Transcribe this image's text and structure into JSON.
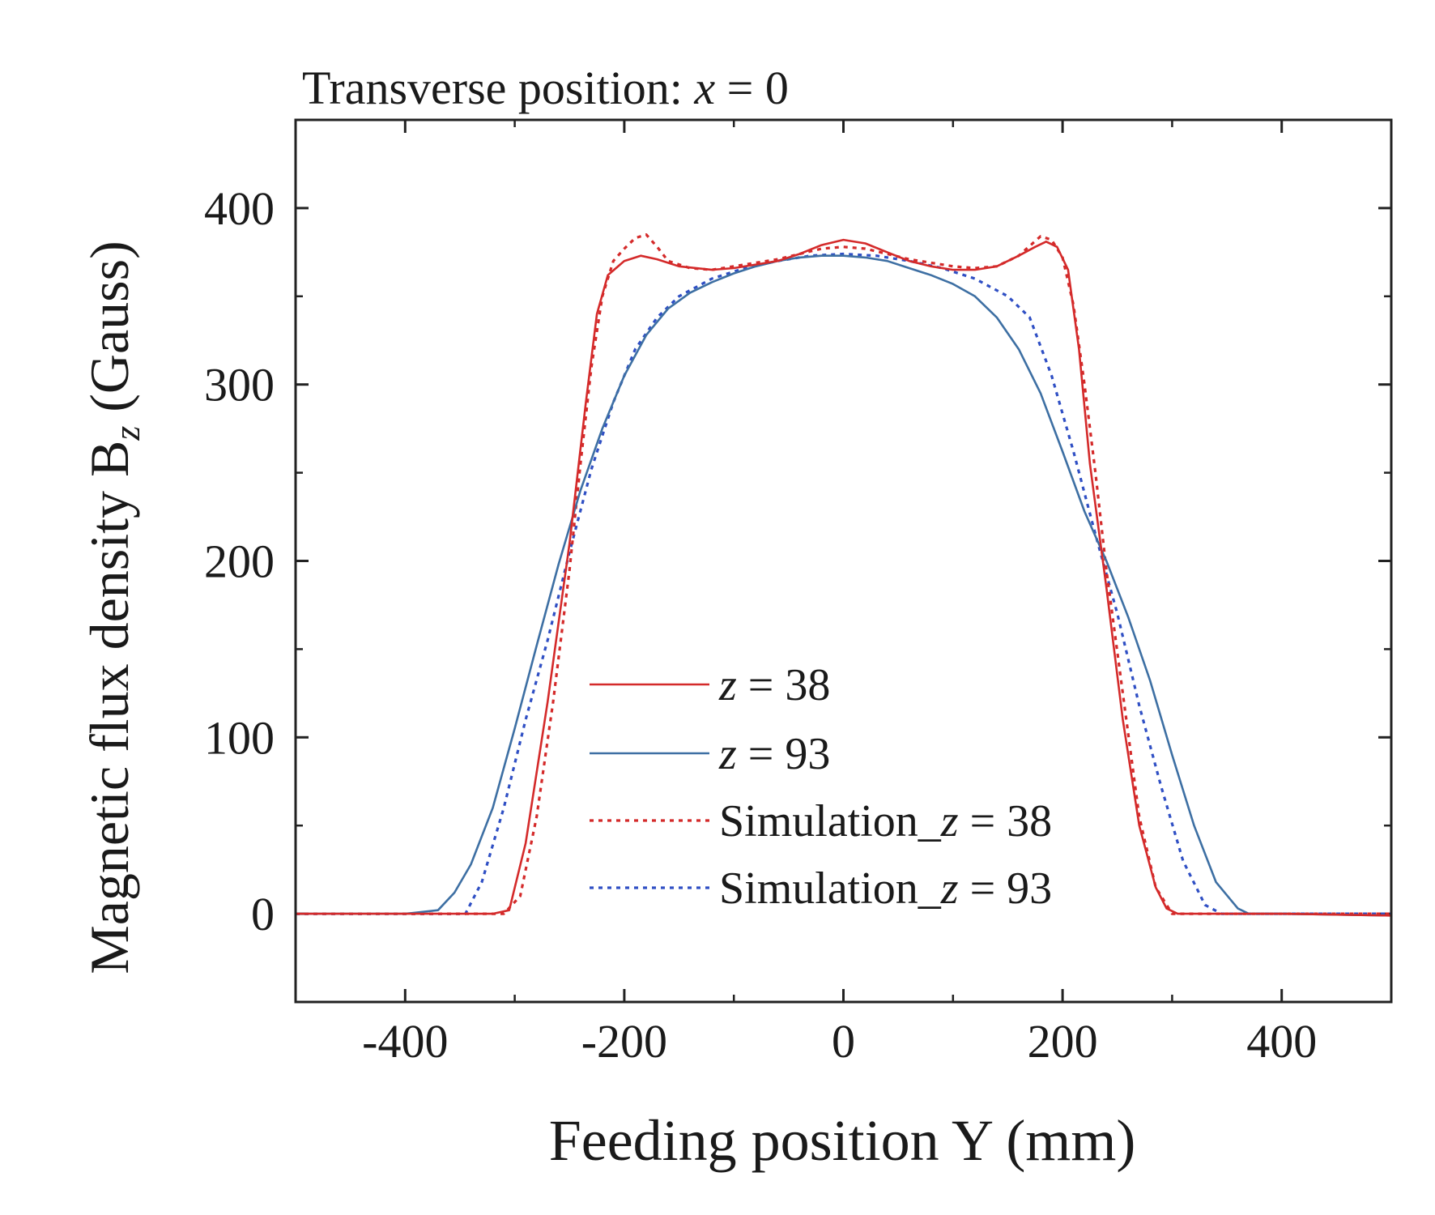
{
  "chart_data": {
    "type": "line",
    "title_prefix": "Transverse position: ",
    "title_var": "x",
    "title_suffix": " = 0",
    "xlabel": "Feeding position Y (mm)",
    "ylabel_main": "Magnetic flux density B",
    "ylabel_sub": "z",
    "ylabel_unit": " (Gauss)",
    "xlim": [
      -500,
      500
    ],
    "ylim": [
      -50,
      450
    ],
    "xticks": [
      -400,
      -200,
      0,
      200,
      400
    ],
    "xtick_labels": [
      "-400",
      "-200",
      "0",
      "200",
      "400"
    ],
    "yticks": [
      0,
      100,
      200,
      300,
      400
    ],
    "ytick_labels": [
      "0",
      "100",
      "200",
      "300",
      "400"
    ],
    "legend_position": "lower-center",
    "series": [
      {
        "name": "z = 38",
        "legend_prefix": "",
        "legend_var": "z",
        "legend_suffix": " = 38",
        "style": "solid",
        "color": "#d42a2a",
        "x": [
          -500,
          -400,
          -320,
          -305,
          -290,
          -270,
          -250,
          -235,
          -225,
          -215,
          -200,
          -185,
          -170,
          -150,
          -120,
          -100,
          -80,
          -60,
          -40,
          -20,
          0,
          20,
          40,
          60,
          80,
          100,
          120,
          140,
          160,
          175,
          185,
          195,
          205,
          215,
          225,
          240,
          255,
          270,
          285,
          295,
          305,
          320,
          400,
          500
        ],
        "y": [
          0,
          0,
          0,
          2,
          40,
          120,
          210,
          290,
          340,
          362,
          370,
          373,
          371,
          367,
          365,
          366,
          368,
          370,
          374,
          379,
          382,
          380,
          375,
          370,
          367,
          365,
          365,
          367,
          373,
          378,
          381,
          378,
          365,
          320,
          255,
          185,
          110,
          50,
          15,
          3,
          0,
          0,
          0,
          -1
        ]
      },
      {
        "name": "z = 93",
        "legend_prefix": "",
        "legend_var": "z",
        "legend_suffix": " = 93",
        "style": "solid",
        "color": "#3d6fa3",
        "x": [
          -500,
          -400,
          -370,
          -355,
          -340,
          -320,
          -300,
          -280,
          -260,
          -240,
          -220,
          -200,
          -180,
          -160,
          -140,
          -120,
          -100,
          -80,
          -60,
          -40,
          -20,
          0,
          20,
          40,
          60,
          80,
          100,
          120,
          140,
          160,
          180,
          200,
          220,
          240,
          260,
          280,
          300,
          320,
          340,
          360,
          370,
          400,
          500
        ],
        "y": [
          0,
          0,
          2,
          12,
          28,
          60,
          105,
          152,
          198,
          240,
          275,
          305,
          328,
          343,
          352,
          358,
          363,
          367,
          370,
          372,
          373,
          373,
          372,
          370,
          366,
          362,
          357,
          350,
          338,
          320,
          295,
          262,
          228,
          200,
          168,
          132,
          90,
          50,
          18,
          3,
          0,
          0,
          -1
        ]
      },
      {
        "name": "Simulation_z = 38",
        "legend_prefix": "Simulation_",
        "legend_var": "z",
        "legend_suffix": " = 38",
        "style": "dotted",
        "color": "#d42a2a",
        "x": [
          -500,
          -310,
          -295,
          -280,
          -265,
          -250,
          -240,
          -230,
          -220,
          -210,
          -200,
          -190,
          -180,
          -170,
          -160,
          -140,
          -120,
          -100,
          -80,
          -60,
          -40,
          -20,
          0,
          20,
          40,
          60,
          80,
          100,
          120,
          140,
          160,
          180,
          190,
          200,
          210,
          220,
          230,
          240,
          255,
          270,
          285,
          300,
          310,
          500
        ],
        "y": [
          0,
          0,
          10,
          55,
          120,
          195,
          255,
          310,
          350,
          370,
          377,
          383,
          385,
          378,
          370,
          366,
          365,
          367,
          369,
          371,
          374,
          377,
          378,
          377,
          374,
          371,
          369,
          367,
          366,
          367,
          373,
          384,
          382,
          372,
          345,
          300,
          250,
          195,
          125,
          55,
          15,
          0,
          0,
          0
        ]
      },
      {
        "name": "Simulation_z = 93",
        "legend_prefix": "Simulation_",
        "legend_var": "z",
        "legend_suffix": " = 93",
        "style": "dotted",
        "color": "#2f4fc4",
        "x": [
          -500,
          -345,
          -330,
          -310,
          -290,
          -270,
          -250,
          -230,
          -210,
          -190,
          -170,
          -150,
          -120,
          -90,
          -60,
          -30,
          0,
          30,
          60,
          90,
          120,
          150,
          170,
          190,
          210,
          230,
          250,
          270,
          290,
          310,
          330,
          345,
          500
        ],
        "y": [
          0,
          0,
          18,
          60,
          110,
          155,
          205,
          252,
          290,
          320,
          338,
          350,
          360,
          366,
          370,
          373,
          374,
          373,
          370,
          366,
          360,
          350,
          338,
          305,
          262,
          215,
          170,
          118,
          72,
          30,
          5,
          0,
          0
        ]
      }
    ]
  }
}
